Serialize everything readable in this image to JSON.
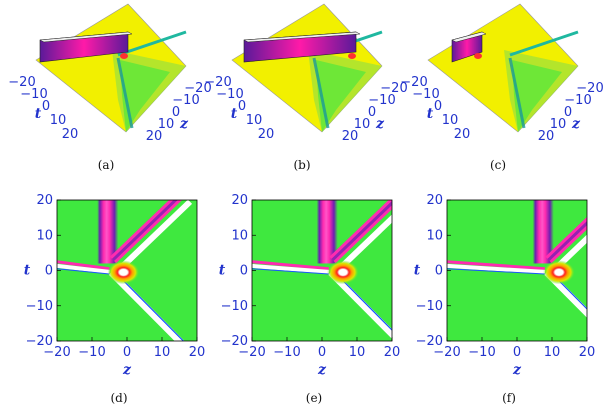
{
  "figure": {
    "panels_3d": [
      {
        "caption": "(a)",
        "z_axis_label": "z",
        "t_axis_label": "t",
        "z_ticks": [
          "−20",
          "−10",
          "0",
          "10",
          "20"
        ],
        "t_ticks": [
          "−20",
          "−10",
          "0",
          "10",
          "20"
        ]
      },
      {
        "caption": "(b)",
        "z_axis_label": "z",
        "t_axis_label": "t",
        "z_ticks": [
          "−20",
          "−10",
          "0",
          "10",
          "20"
        ],
        "t_ticks": [
          "−20",
          "−10",
          "0",
          "10",
          "20"
        ]
      },
      {
        "caption": "(c)",
        "z_axis_label": "z",
        "t_axis_label": "t",
        "z_ticks": [
          "−20",
          "−10",
          "0",
          "10",
          "20"
        ],
        "t_ticks": [
          "−20",
          "−10",
          "0",
          "10",
          "20"
        ]
      }
    ],
    "panels_density": [
      {
        "caption": "(d)",
        "xlabel": "z",
        "ylabel": "t",
        "x_ticks": [
          "−20",
          "−10",
          "0",
          "10",
          "20"
        ],
        "y_ticks": [
          "20",
          "10",
          "0",
          "−10",
          "−20"
        ],
        "vertex_z": -5
      },
      {
        "caption": "(e)",
        "xlabel": "z",
        "ylabel": "t",
        "x_ticks": [
          "−20",
          "−10",
          "0",
          "10",
          "20"
        ],
        "y_ticks": [
          "20",
          "10",
          "0",
          "−10",
          "−20"
        ],
        "vertex_z": 2
      },
      {
        "caption": "(f)",
        "xlabel": "z",
        "ylabel": "t",
        "x_ticks": [
          "−20",
          "−10",
          "0",
          "10",
          "20"
        ],
        "y_ticks": [
          "20",
          "10",
          "0",
          "−10",
          "−20"
        ],
        "vertex_z": 8
      }
    ],
    "colors": {
      "background": "#3fe83f",
      "surface_top": "#f2f000",
      "peak": "#ff1aa8",
      "ridge": "#7a1fb0",
      "trough": "#ffffff",
      "tick_text": "#2233cc"
    }
  }
}
